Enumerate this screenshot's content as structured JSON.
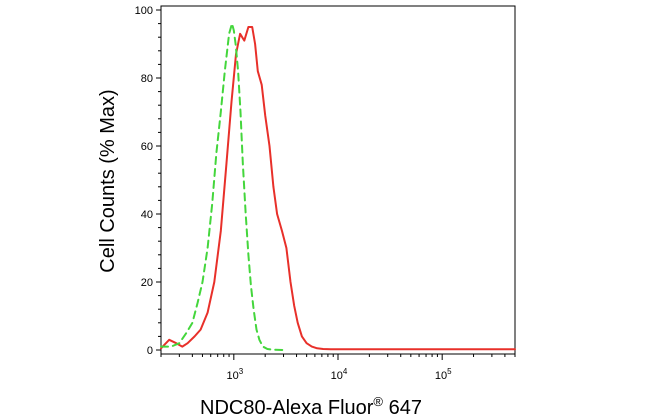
{
  "chart_data": {
    "type": "line",
    "title": "",
    "xlabel": "NDC80-Alexa Fluor® 647",
    "ylabel": "Cell Counts (% Max)",
    "xscale": "log",
    "xlim": [
      200,
      500000
    ],
    "ylim": [
      0,
      100
    ],
    "grid": false,
    "legend": "none",
    "x_ticks": [
      {
        "value": 1000,
        "base": "10",
        "exp": "3"
      },
      {
        "value": 10000,
        "base": "10",
        "exp": "4"
      },
      {
        "value": 100000,
        "base": "10",
        "exp": "5"
      }
    ],
    "y_ticks": [
      0,
      20,
      40,
      60,
      80,
      100
    ],
    "series": [
      {
        "color": "#e8302a",
        "style": "solid",
        "x": [
          200,
          240,
          280,
          320,
          360,
          420,
          480,
          560,
          650,
          750,
          850,
          950,
          1050,
          1150,
          1260,
          1380,
          1500,
          1600,
          1700,
          1850,
          2000,
          2200,
          2400,
          2600,
          2900,
          3200,
          3500,
          3800,
          4100,
          4500,
          5000,
          5600,
          6300,
          7200,
          8500,
          10000,
          20000,
          50000,
          100000,
          300000,
          500000
        ],
        "y": [
          0.5,
          3,
          2,
          1,
          2,
          4,
          6,
          11,
          20,
          35,
          55,
          73,
          87,
          93,
          91,
          95,
          95,
          90,
          82,
          78,
          69,
          60,
          48,
          40,
          35,
          30,
          20,
          13,
          8,
          4,
          2,
          1,
          0.5,
          0.3,
          0.2,
          0.2,
          0.2,
          0.2,
          0.2,
          0.2,
          0.2
        ]
      },
      {
        "color": "#44d63c",
        "style": "dashed",
        "x": [
          200,
          250,
          300,
          350,
          400,
          450,
          500,
          560,
          620,
          680,
          750,
          820,
          900,
          960,
          1000,
          1040,
          1100,
          1160,
          1220,
          1300,
          1380,
          1460,
          1550,
          1650,
          1760,
          1900,
          2100,
          2400,
          3000
        ],
        "y": [
          1,
          1,
          2,
          5,
          8,
          14,
          20,
          30,
          43,
          58,
          70,
          82,
          93,
          96,
          94,
          90,
          82,
          70,
          55,
          40,
          28,
          19,
          12,
          6,
          3,
          1,
          0.3,
          0.1,
          0
        ]
      }
    ]
  }
}
